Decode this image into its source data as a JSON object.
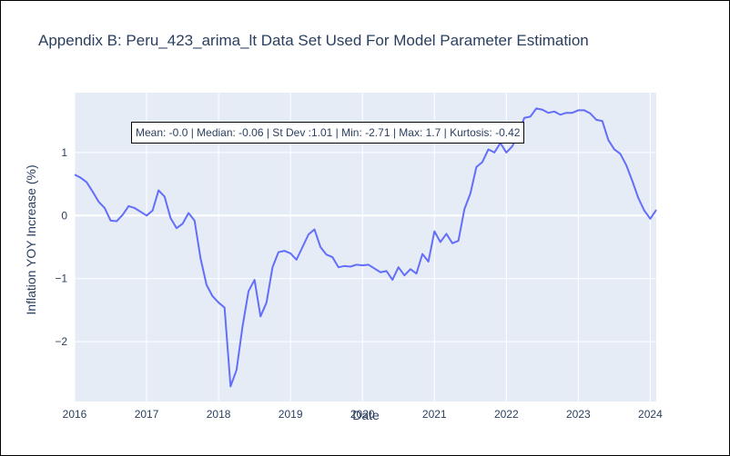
{
  "chart_data": {
    "type": "line",
    "title": "Appendix B: Peru_423_arima_lt Data Set Used For Model Parameter Estimation",
    "xlabel": "Date",
    "ylabel": "Inflation YOY Increase (%)",
    "x_range": [
      "2016-01",
      "2024-02"
    ],
    "ylim": [
      -2.95,
      1.95
    ],
    "x_ticks": [
      "2016",
      "2017",
      "2018",
      "2019",
      "2020",
      "2021",
      "2022",
      "2023",
      "2024"
    ],
    "y_ticks": [
      {
        "value": 1,
        "label": "1"
      },
      {
        "value": 0,
        "label": "0"
      },
      {
        "value": -1,
        "label": "−1"
      },
      {
        "value": -2,
        "label": "−2"
      }
    ],
    "grid": true,
    "line_color": "#636efa",
    "plot_background": "#e5ecf6",
    "annotation": "Mean: -0.0 | Median: -0.06 | St Dev :1.01 | Min: -2.71 | Max: 1.7 | Kurtosis: -0.42",
    "series": [
      {
        "x": [
          "2016-01",
          "2016-02",
          "2016-03",
          "2016-04",
          "2016-05",
          "2016-06",
          "2016-07",
          "2016-08",
          "2016-09",
          "2016-10",
          "2016-11",
          "2016-12",
          "2017-01",
          "2017-02",
          "2017-03",
          "2017-04",
          "2017-05",
          "2017-06",
          "2017-07",
          "2017-08",
          "2017-09",
          "2017-10",
          "2017-11",
          "2017-12",
          "2018-01",
          "2018-02",
          "2018-03",
          "2018-04",
          "2018-05",
          "2018-06",
          "2018-07",
          "2018-08",
          "2018-09",
          "2018-10",
          "2018-11",
          "2018-12",
          "2019-01",
          "2019-02",
          "2019-03",
          "2019-04",
          "2019-05",
          "2019-06",
          "2019-07",
          "2019-08",
          "2019-09",
          "2019-10",
          "2019-11",
          "2019-12",
          "2020-01",
          "2020-02",
          "2020-03",
          "2020-04",
          "2020-05",
          "2020-06",
          "2020-07",
          "2020-08",
          "2020-09",
          "2020-10",
          "2020-11",
          "2020-12",
          "2021-01",
          "2021-02",
          "2021-03",
          "2021-04",
          "2021-05",
          "2021-06",
          "2021-07",
          "2021-08",
          "2021-09",
          "2021-10",
          "2021-11",
          "2021-12",
          "2022-01",
          "2022-02",
          "2022-03",
          "2022-04",
          "2022-05",
          "2022-06",
          "2022-07",
          "2022-08",
          "2022-09",
          "2022-10",
          "2022-11",
          "2022-12",
          "2023-01",
          "2023-02",
          "2023-03",
          "2023-04",
          "2023-05",
          "2023-06",
          "2023-07",
          "2023-08",
          "2023-09",
          "2023-10",
          "2023-11",
          "2023-12",
          "2024-01",
          "2024-02"
        ],
        "y": [
          0.65,
          0.6,
          0.53,
          0.38,
          0.22,
          0.12,
          -0.08,
          -0.09,
          0.01,
          0.15,
          0.12,
          0.06,
          0.0,
          0.08,
          0.4,
          0.3,
          -0.04,
          -0.2,
          -0.13,
          0.04,
          -0.08,
          -0.68,
          -1.1,
          -1.28,
          -1.38,
          -1.46,
          -2.71,
          -2.45,
          -1.76,
          -1.2,
          -1.02,
          -1.6,
          -1.38,
          -0.82,
          -0.58,
          -0.56,
          -0.6,
          -0.7,
          -0.5,
          -0.3,
          -0.22,
          -0.5,
          -0.62,
          -0.66,
          -0.82,
          -0.8,
          -0.81,
          -0.78,
          -0.79,
          -0.78,
          -0.84,
          -0.9,
          -0.88,
          -1.02,
          -0.82,
          -0.95,
          -0.85,
          -0.92,
          -0.61,
          -0.73,
          -0.25,
          -0.42,
          -0.29,
          -0.44,
          -0.4,
          0.1,
          0.35,
          0.77,
          0.85,
          1.05,
          1.0,
          1.15,
          1.0,
          1.1,
          1.3,
          1.55,
          1.57,
          1.7,
          1.68,
          1.63,
          1.65,
          1.6,
          1.63,
          1.63,
          1.67,
          1.67,
          1.62,
          1.52,
          1.5,
          1.2,
          1.05,
          0.98,
          0.8,
          0.55,
          0.28,
          0.08,
          -0.05,
          0.09
        ]
      }
    ]
  }
}
